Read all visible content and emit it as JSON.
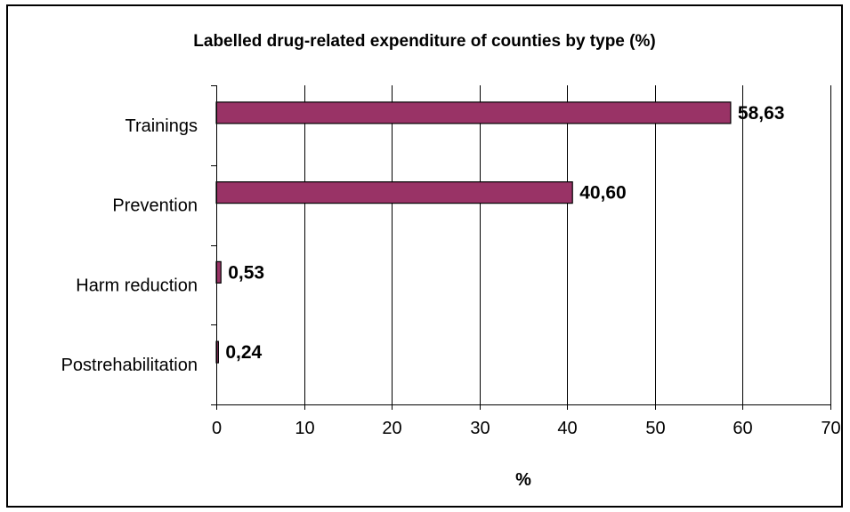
{
  "chart_data": {
    "type": "bar",
    "orientation": "horizontal",
    "title": "Labelled drug-related expenditure of counties by type (%)",
    "xlabel": "%",
    "ylabel": "",
    "categories": [
      "Trainings",
      "Prevention",
      "Harm reduction",
      "Postrehabilitation"
    ],
    "values": [
      58.63,
      40.6,
      0.53,
      0.24
    ],
    "data_labels": [
      "58,63",
      "40,60",
      "0,53",
      "0,24"
    ],
    "xlim": [
      0,
      70
    ],
    "x_ticks": [
      0,
      10,
      20,
      30,
      40,
      50,
      60,
      70
    ],
    "x_tick_labels": [
      "0",
      "10",
      "20",
      "30",
      "40",
      "50",
      "60",
      "70"
    ],
    "grid": "vertical",
    "legend": "none",
    "colors": {
      "bar_fill": "#993366",
      "bar_stroke": "#000000",
      "gridline": "#000000",
      "frame": "#000000"
    }
  }
}
